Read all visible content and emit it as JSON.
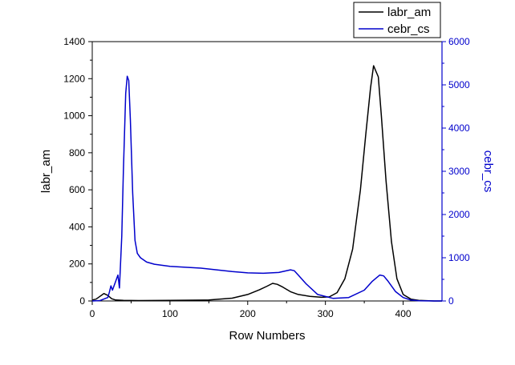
{
  "chart_data": {
    "type": "line",
    "title": "",
    "xlabel": "Row Numbers",
    "ylabel_left": "labr_am",
    "ylabel_right": "cebr_cs",
    "xlim": [
      0,
      450
    ],
    "ylim_left": [
      0,
      1400
    ],
    "ylim_right": [
      0,
      6000
    ],
    "x_ticks": [
      0,
      100,
      200,
      300,
      400
    ],
    "y_left_ticks": [
      0,
      200,
      400,
      600,
      800,
      1000,
      1200,
      1400
    ],
    "y_right_ticks": [
      0,
      1000,
      2000,
      3000,
      4000,
      5000,
      6000
    ],
    "grid": false,
    "legend_position": "top-right, above plot",
    "series": [
      {
        "name": "labr_am",
        "axis": "left",
        "color": "#000000",
        "x": [
          0,
          5,
          10,
          15,
          20,
          25,
          30,
          40,
          60,
          100,
          150,
          180,
          200,
          215,
          225,
          232,
          238,
          245,
          255,
          265,
          280,
          295,
          305,
          315,
          325,
          335,
          345,
          352,
          358,
          362,
          365,
          368,
          372,
          378,
          385,
          392,
          400,
          410,
          420,
          440,
          450
        ],
        "y": [
          5,
          10,
          25,
          40,
          30,
          12,
          5,
          3,
          2,
          3,
          5,
          15,
          35,
          60,
          80,
          95,
          90,
          75,
          50,
          35,
          25,
          20,
          22,
          45,
          120,
          280,
          600,
          900,
          1150,
          1270,
          1240,
          1210,
          1000,
          650,
          320,
          120,
          35,
          10,
          3,
          0,
          0
        ]
      },
      {
        "name": "cebr_cs",
        "axis": "right",
        "color": "#0000cc",
        "x": [
          0,
          10,
          20,
          22,
          24,
          26,
          30,
          33,
          35,
          38,
          40,
          43,
          45,
          47,
          49,
          52,
          55,
          58,
          62,
          70,
          80,
          100,
          120,
          140,
          160,
          180,
          200,
          220,
          240,
          255,
          260,
          265,
          275,
          290,
          310,
          330,
          350,
          360,
          370,
          375,
          380,
          390,
          400,
          410,
          420,
          440,
          450
        ],
        "y": [
          0,
          10,
          80,
          200,
          350,
          250,
          450,
          600,
          300,
          1500,
          3000,
          4800,
          5200,
          5100,
          4200,
          2500,
          1400,
          1100,
          1000,
          900,
          850,
          800,
          780,
          760,
          720,
          680,
          650,
          640,
          660,
          720,
          700,
          600,
          400,
          150,
          60,
          80,
          250,
          450,
          600,
          580,
          470,
          220,
          80,
          20,
          5,
          0,
          0
        ]
      }
    ]
  }
}
